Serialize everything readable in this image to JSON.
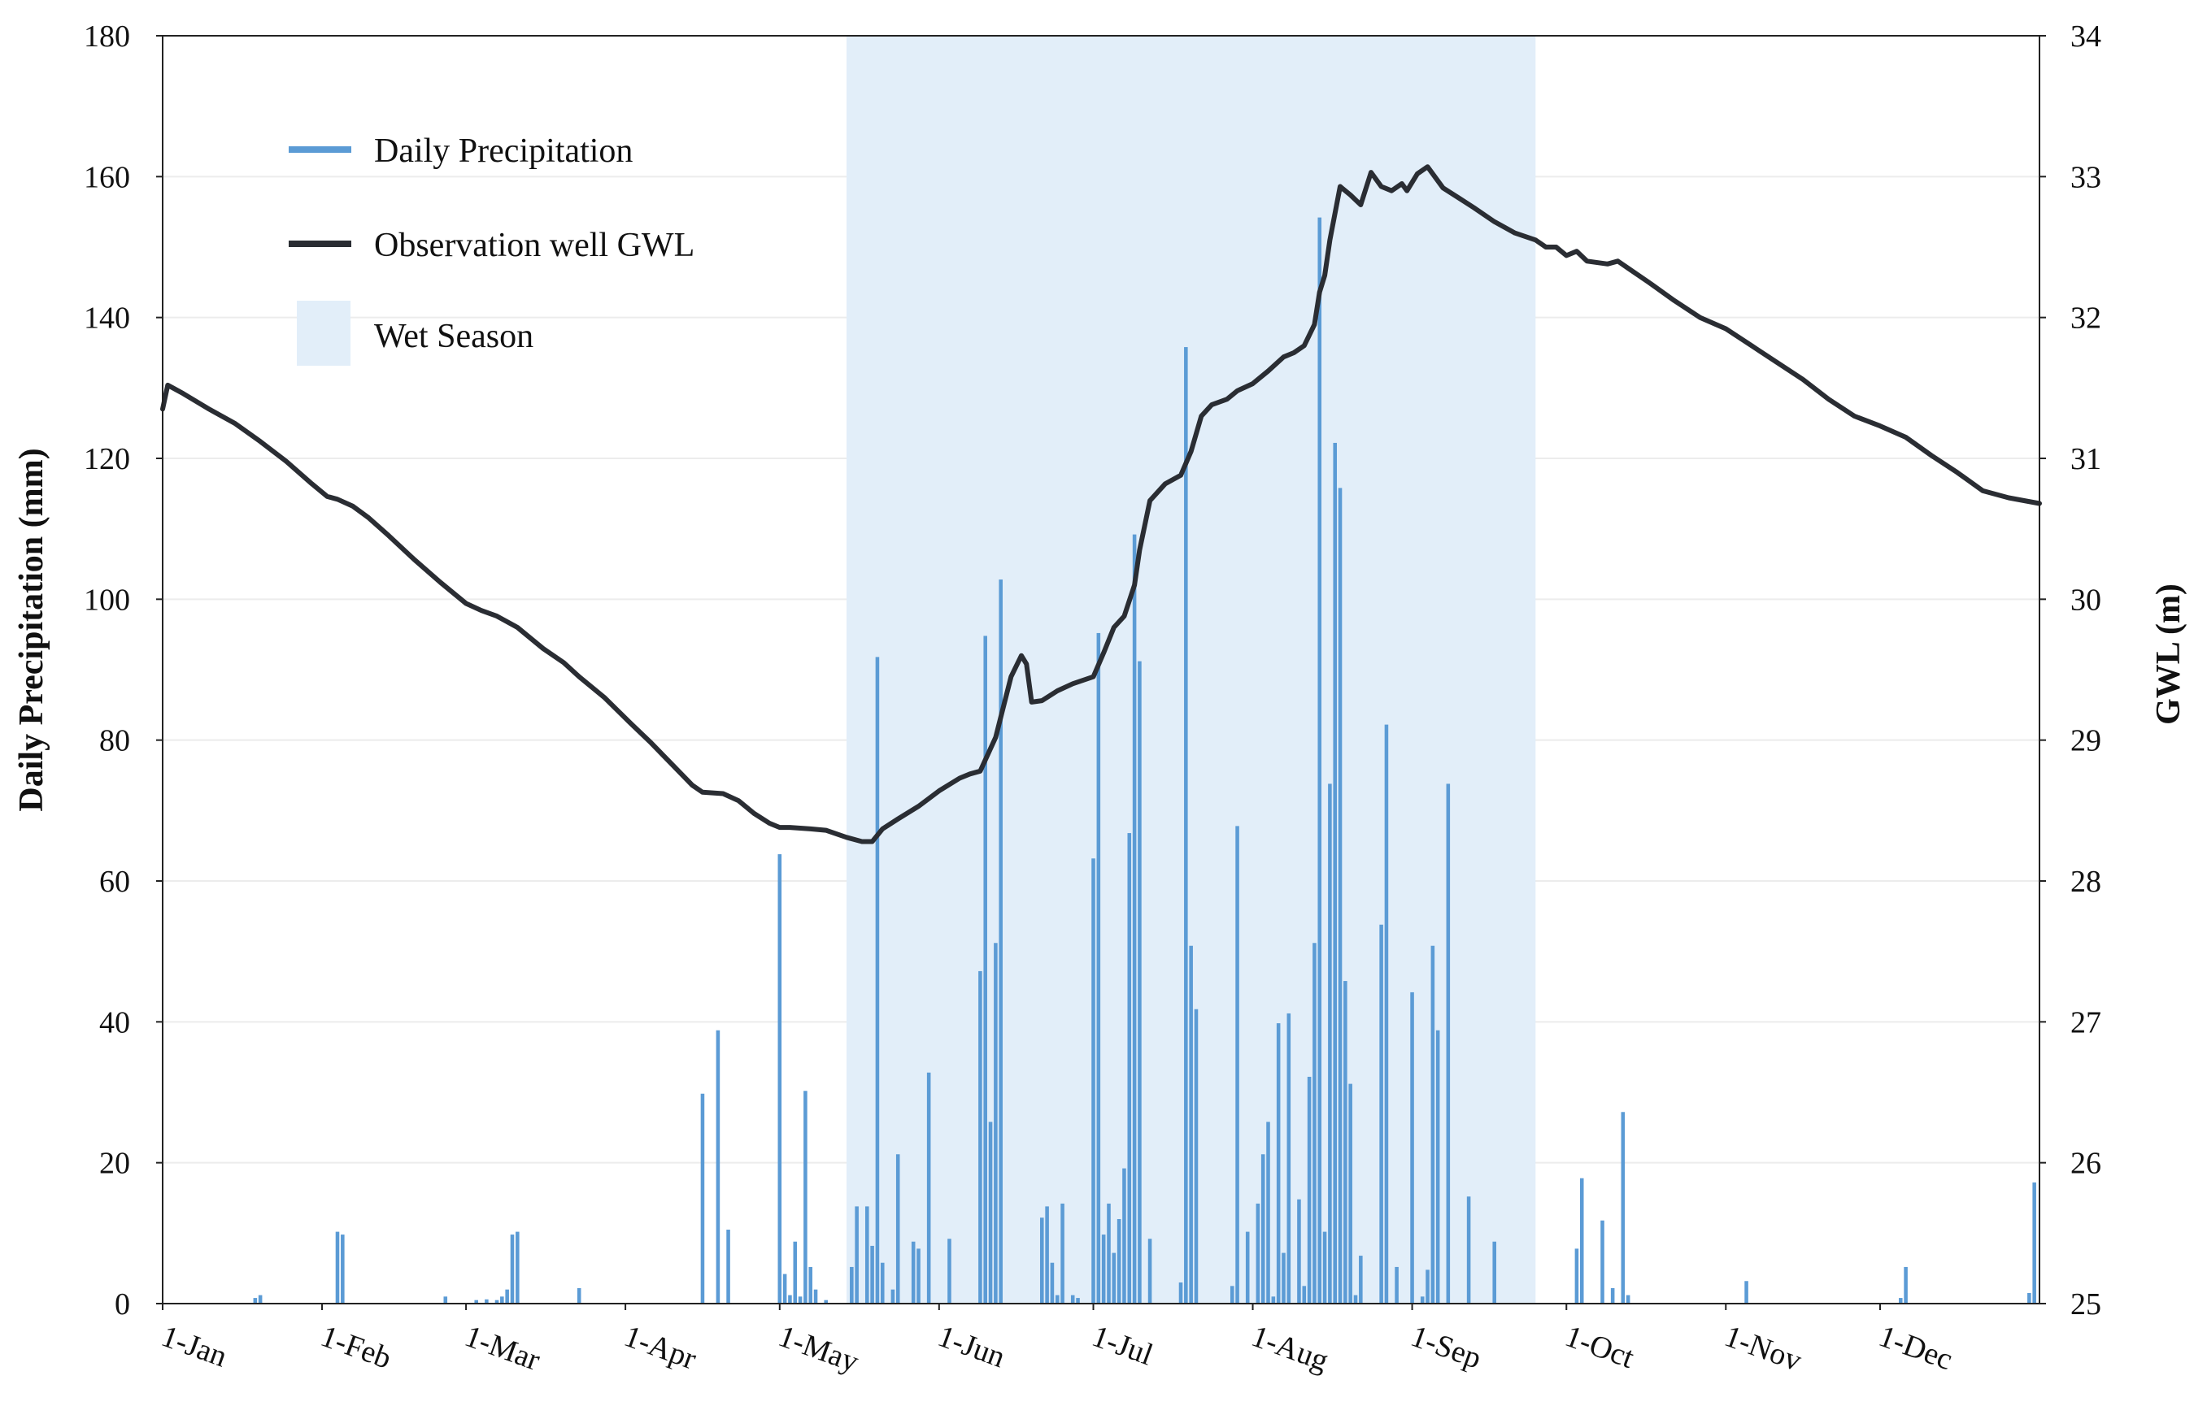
{
  "chart_data": {
    "type": "bar+line",
    "title": "",
    "xlabel": "",
    "ylabel": "Daily Precipitation (mm)",
    "y2label": "GWL  (m)",
    "ylim": [
      0,
      180
    ],
    "y2lim": [
      25,
      34
    ],
    "yticks": [
      0,
      20,
      40,
      60,
      80,
      100,
      120,
      140,
      160,
      180
    ],
    "y2ticks": [
      25,
      26,
      27,
      28,
      29,
      30,
      31,
      32,
      33,
      34
    ],
    "x_range_days": [
      1,
      366
    ],
    "x_ticks": [
      {
        "label": "1-Jan",
        "day": 1
      },
      {
        "label": "1-Feb",
        "day": 32
      },
      {
        "label": "1-Mar",
        "day": 60
      },
      {
        "label": "1-Apr",
        "day": 91
      },
      {
        "label": "1-May",
        "day": 121
      },
      {
        "label": "1-Jun",
        "day": 152
      },
      {
        "label": "1-Jul",
        "day": 182
      },
      {
        "label": "1-Aug",
        "day": 213
      },
      {
        "label": "1-Sep",
        "day": 244
      },
      {
        "label": "1-Oct",
        "day": 274
      },
      {
        "label": "1-Nov",
        "day": 305
      },
      {
        "label": "1-Dec",
        "day": 335
      }
    ],
    "wet_season": {
      "label": "Wet Season",
      "start_day": 134,
      "end_day": 268
    },
    "legend": {
      "placement": "top-left",
      "entries": [
        "Daily Precipitation",
        "Observation well GWL",
        "Wet Season"
      ]
    },
    "colors": {
      "precip": "#5b9bd5",
      "gwl": "#2a2d33",
      "wet": "#e2eef9"
    },
    "precipitation": [
      {
        "day": 19,
        "mm": 0.8
      },
      {
        "day": 20,
        "mm": 1.2
      },
      {
        "day": 35,
        "mm": 10.2
      },
      {
        "day": 36,
        "mm": 9.8
      },
      {
        "day": 56,
        "mm": 1.0
      },
      {
        "day": 62,
        "mm": 0.5
      },
      {
        "day": 64,
        "mm": 0.6
      },
      {
        "day": 66,
        "mm": 0.5
      },
      {
        "day": 67,
        "mm": 1.0
      },
      {
        "day": 68,
        "mm": 2.0
      },
      {
        "day": 69,
        "mm": 9.8
      },
      {
        "day": 70,
        "mm": 10.2
      },
      {
        "day": 82,
        "mm": 2.2
      },
      {
        "day": 106,
        "mm": 29.8
      },
      {
        "day": 109,
        "mm": 38.8
      },
      {
        "day": 111,
        "mm": 10.5
      },
      {
        "day": 121,
        "mm": 63.8
      },
      {
        "day": 122,
        "mm": 4.2
      },
      {
        "day": 123,
        "mm": 1.2
      },
      {
        "day": 124,
        "mm": 8.8
      },
      {
        "day": 125,
        "mm": 1.0
      },
      {
        "day": 126,
        "mm": 30.2
      },
      {
        "day": 127,
        "mm": 5.2
      },
      {
        "day": 128,
        "mm": 2.0
      },
      {
        "day": 130,
        "mm": 0.5
      },
      {
        "day": 135,
        "mm": 5.2
      },
      {
        "day": 136,
        "mm": 13.8
      },
      {
        "day": 138,
        "mm": 13.8
      },
      {
        "day": 139,
        "mm": 8.2
      },
      {
        "day": 140,
        "mm": 91.8
      },
      {
        "day": 141,
        "mm": 5.8
      },
      {
        "day": 143,
        "mm": 2.0
      },
      {
        "day": 144,
        "mm": 21.2
      },
      {
        "day": 147,
        "mm": 8.8
      },
      {
        "day": 148,
        "mm": 7.8
      },
      {
        "day": 150,
        "mm": 32.8
      },
      {
        "day": 154,
        "mm": 9.2
      },
      {
        "day": 160,
        "mm": 47.2
      },
      {
        "day": 161,
        "mm": 94.8
      },
      {
        "day": 162,
        "mm": 25.8
      },
      {
        "day": 163,
        "mm": 51.2
      },
      {
        "day": 164,
        "mm": 102.8
      },
      {
        "day": 172,
        "mm": 12.2
      },
      {
        "day": 173,
        "mm": 13.8
      },
      {
        "day": 174,
        "mm": 5.8
      },
      {
        "day": 175,
        "mm": 1.2
      },
      {
        "day": 176,
        "mm": 14.2
      },
      {
        "day": 178,
        "mm": 1.2
      },
      {
        "day": 179,
        "mm": 0.8
      },
      {
        "day": 182,
        "mm": 63.2
      },
      {
        "day": 183,
        "mm": 95.2
      },
      {
        "day": 184,
        "mm": 9.8
      },
      {
        "day": 185,
        "mm": 14.2
      },
      {
        "day": 186,
        "mm": 7.2
      },
      {
        "day": 187,
        "mm": 12.0
      },
      {
        "day": 188,
        "mm": 19.2
      },
      {
        "day": 189,
        "mm": 66.8
      },
      {
        "day": 190,
        "mm": 109.2
      },
      {
        "day": 191,
        "mm": 91.2
      },
      {
        "day": 193,
        "mm": 9.2
      },
      {
        "day": 199,
        "mm": 3.0
      },
      {
        "day": 200,
        "mm": 135.8
      },
      {
        "day": 201,
        "mm": 50.8
      },
      {
        "day": 202,
        "mm": 41.8
      },
      {
        "day": 209,
        "mm": 2.5
      },
      {
        "day": 210,
        "mm": 67.8
      },
      {
        "day": 212,
        "mm": 10.2
      },
      {
        "day": 214,
        "mm": 14.2
      },
      {
        "day": 215,
        "mm": 21.2
      },
      {
        "day": 216,
        "mm": 25.8
      },
      {
        "day": 217,
        "mm": 1.0
      },
      {
        "day": 218,
        "mm": 39.8
      },
      {
        "day": 219,
        "mm": 7.2
      },
      {
        "day": 220,
        "mm": 41.2
      },
      {
        "day": 222,
        "mm": 14.8
      },
      {
        "day": 223,
        "mm": 2.5
      },
      {
        "day": 224,
        "mm": 32.2
      },
      {
        "day": 225,
        "mm": 51.2
      },
      {
        "day": 226,
        "mm": 154.2
      },
      {
        "day": 227,
        "mm": 10.2
      },
      {
        "day": 228,
        "mm": 73.8
      },
      {
        "day": 229,
        "mm": 122.2
      },
      {
        "day": 230,
        "mm": 115.8
      },
      {
        "day": 231,
        "mm": 45.8
      },
      {
        "day": 232,
        "mm": 31.2
      },
      {
        "day": 233,
        "mm": 1.2
      },
      {
        "day": 234,
        "mm": 6.8
      },
      {
        "day": 238,
        "mm": 53.8
      },
      {
        "day": 239,
        "mm": 82.2
      },
      {
        "day": 241,
        "mm": 5.2
      },
      {
        "day": 244,
        "mm": 44.2
      },
      {
        "day": 246,
        "mm": 1.0
      },
      {
        "day": 247,
        "mm": 4.8
      },
      {
        "day": 248,
        "mm": 50.8
      },
      {
        "day": 249,
        "mm": 38.8
      },
      {
        "day": 251,
        "mm": 73.8
      },
      {
        "day": 255,
        "mm": 15.2
      },
      {
        "day": 260,
        "mm": 8.8
      },
      {
        "day": 276,
        "mm": 7.8
      },
      {
        "day": 277,
        "mm": 17.8
      },
      {
        "day": 281,
        "mm": 11.8
      },
      {
        "day": 283,
        "mm": 2.2
      },
      {
        "day": 285,
        "mm": 27.2
      },
      {
        "day": 286,
        "mm": 1.2
      },
      {
        "day": 309,
        "mm": 3.2
      },
      {
        "day": 339,
        "mm": 0.8
      },
      {
        "day": 340,
        "mm": 5.2
      },
      {
        "day": 364,
        "mm": 1.5
      },
      {
        "day": 365,
        "mm": 17.2
      }
    ],
    "gwl": [
      {
        "day": 1,
        "m": 31.35
      },
      {
        "day": 2,
        "m": 31.52
      },
      {
        "day": 3,
        "m": 31.5
      },
      {
        "day": 5,
        "m": 31.46
      },
      {
        "day": 10,
        "m": 31.35
      },
      {
        "day": 15,
        "m": 31.25
      },
      {
        "day": 20,
        "m": 31.12
      },
      {
        "day": 25,
        "m": 30.98
      },
      {
        "day": 30,
        "m": 30.82
      },
      {
        "day": 33,
        "m": 30.73
      },
      {
        "day": 35,
        "m": 30.71
      },
      {
        "day": 38,
        "m": 30.66
      },
      {
        "day": 41,
        "m": 30.58
      },
      {
        "day": 45,
        "m": 30.45
      },
      {
        "day": 50,
        "m": 30.28
      },
      {
        "day": 55,
        "m": 30.12
      },
      {
        "day": 60,
        "m": 29.97
      },
      {
        "day": 63,
        "m": 29.92
      },
      {
        "day": 66,
        "m": 29.88
      },
      {
        "day": 70,
        "m": 29.8
      },
      {
        "day": 75,
        "m": 29.65
      },
      {
        "day": 79,
        "m": 29.55
      },
      {
        "day": 82,
        "m": 29.45
      },
      {
        "day": 87,
        "m": 29.3
      },
      {
        "day": 92,
        "m": 29.12
      },
      {
        "day": 96,
        "m": 28.98
      },
      {
        "day": 100,
        "m": 28.83
      },
      {
        "day": 104,
        "m": 28.68
      },
      {
        "day": 106,
        "m": 28.63
      },
      {
        "day": 110,
        "m": 28.62
      },
      {
        "day": 113,
        "m": 28.57
      },
      {
        "day": 116,
        "m": 28.48
      },
      {
        "day": 119,
        "m": 28.41
      },
      {
        "day": 121,
        "m": 28.38
      },
      {
        "day": 123,
        "m": 28.38
      },
      {
        "day": 127,
        "m": 28.37
      },
      {
        "day": 130,
        "m": 28.36
      },
      {
        "day": 134,
        "m": 28.31
      },
      {
        "day": 137,
        "m": 28.28
      },
      {
        "day": 139,
        "m": 28.28
      },
      {
        "day": 141,
        "m": 28.37
      },
      {
        "day": 144,
        "m": 28.44
      },
      {
        "day": 148,
        "m": 28.53
      },
      {
        "day": 152,
        "m": 28.64
      },
      {
        "day": 156,
        "m": 28.73
      },
      {
        "day": 158,
        "m": 28.76
      },
      {
        "day": 160,
        "m": 28.78
      },
      {
        "day": 163,
        "m": 29.02
      },
      {
        "day": 166,
        "m": 29.45
      },
      {
        "day": 168,
        "m": 29.6
      },
      {
        "day": 169,
        "m": 29.54
      },
      {
        "day": 170,
        "m": 29.27
      },
      {
        "day": 172,
        "m": 29.28
      },
      {
        "day": 175,
        "m": 29.35
      },
      {
        "day": 178,
        "m": 29.4
      },
      {
        "day": 182,
        "m": 29.45
      },
      {
        "day": 184,
        "m": 29.62
      },
      {
        "day": 186,
        "m": 29.8
      },
      {
        "day": 188,
        "m": 29.88
      },
      {
        "day": 190,
        "m": 30.1
      },
      {
        "day": 191,
        "m": 30.35
      },
      {
        "day": 193,
        "m": 30.7
      },
      {
        "day": 196,
        "m": 30.82
      },
      {
        "day": 199,
        "m": 30.88
      },
      {
        "day": 201,
        "m": 31.05
      },
      {
        "day": 203,
        "m": 31.3
      },
      {
        "day": 205,
        "m": 31.38
      },
      {
        "day": 208,
        "m": 31.42
      },
      {
        "day": 210,
        "m": 31.48
      },
      {
        "day": 213,
        "m": 31.53
      },
      {
        "day": 216,
        "m": 31.62
      },
      {
        "day": 219,
        "m": 31.72
      },
      {
        "day": 221,
        "m": 31.75
      },
      {
        "day": 223,
        "m": 31.8
      },
      {
        "day": 225,
        "m": 31.95
      },
      {
        "day": 226,
        "m": 32.18
      },
      {
        "day": 227,
        "m": 32.3
      },
      {
        "day": 228,
        "m": 32.55
      },
      {
        "day": 230,
        "m": 32.93
      },
      {
        "day": 232,
        "m": 32.87
      },
      {
        "day": 234,
        "m": 32.8
      },
      {
        "day": 236,
        "m": 33.03
      },
      {
        "day": 238,
        "m": 32.93
      },
      {
        "day": 240,
        "m": 32.9
      },
      {
        "day": 242,
        "m": 32.95
      },
      {
        "day": 243,
        "m": 32.9
      },
      {
        "day": 245,
        "m": 33.02
      },
      {
        "day": 247,
        "m": 33.07
      },
      {
        "day": 250,
        "m": 32.92
      },
      {
        "day": 253,
        "m": 32.85
      },
      {
        "day": 256,
        "m": 32.78
      },
      {
        "day": 260,
        "m": 32.68
      },
      {
        "day": 264,
        "m": 32.6
      },
      {
        "day": 268,
        "m": 32.55
      },
      {
        "day": 270,
        "m": 32.5
      },
      {
        "day": 272,
        "m": 32.5
      },
      {
        "day": 274,
        "m": 32.44
      },
      {
        "day": 276,
        "m": 32.47
      },
      {
        "day": 278,
        "m": 32.4
      },
      {
        "day": 282,
        "m": 32.38
      },
      {
        "day": 284,
        "m": 32.4
      },
      {
        "day": 286,
        "m": 32.35
      },
      {
        "day": 290,
        "m": 32.25
      },
      {
        "day": 295,
        "m": 32.12
      },
      {
        "day": 300,
        "m": 32.0
      },
      {
        "day": 305,
        "m": 31.92
      },
      {
        "day": 310,
        "m": 31.8
      },
      {
        "day": 315,
        "m": 31.68
      },
      {
        "day": 320,
        "m": 31.56
      },
      {
        "day": 325,
        "m": 31.42
      },
      {
        "day": 330,
        "m": 31.3
      },
      {
        "day": 335,
        "m": 31.23
      },
      {
        "day": 340,
        "m": 31.15
      },
      {
        "day": 345,
        "m": 31.02
      },
      {
        "day": 350,
        "m": 30.9
      },
      {
        "day": 355,
        "m": 30.77
      },
      {
        "day": 360,
        "m": 30.72
      },
      {
        "day": 363,
        "m": 30.7
      },
      {
        "day": 366,
        "m": 30.68
      }
    ]
  }
}
